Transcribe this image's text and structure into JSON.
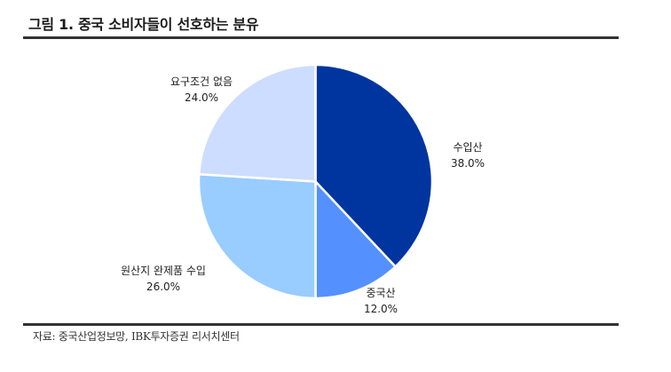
{
  "header": {
    "title": "그림 1. 중국 소비자들이 선호하는 분유"
  },
  "footer": {
    "source": "자료: 중국산업정보망, IBK투자증권 리서치센터"
  },
  "colors": {
    "imported": "#0035A0",
    "domestic": "#5590FF",
    "origin_finished_import": "#99CCFF",
    "no_requirement": "#CCDDFF"
  },
  "chart_data": {
    "type": "pie",
    "title": "그림 1. 중국 소비자들이 선호하는 분유",
    "start_angle": "12 o'clock, clockwise",
    "categories": [
      "수입산",
      "중국산",
      "원산지 완제품 수입",
      "요구조건 없음"
    ],
    "values": [
      38.0,
      12.0,
      26.0,
      24.0
    ],
    "unit": "%",
    "labels": [
      {
        "name": "수입산",
        "value_text": "38.0%"
      },
      {
        "name": "중국산",
        "value_text": "12.0%"
      },
      {
        "name": "원산지 완제품 수입",
        "value_text": "26.0%"
      },
      {
        "name": "요구조건 없음",
        "value_text": "24.0%"
      }
    ],
    "colors": [
      "#0035A0",
      "#5590FF",
      "#99CCFF",
      "#CCDDFF"
    ],
    "legend": "none (labels outside slices)",
    "source": "자료: 중국산업정보망, IBK투자증권 리서치센터"
  }
}
